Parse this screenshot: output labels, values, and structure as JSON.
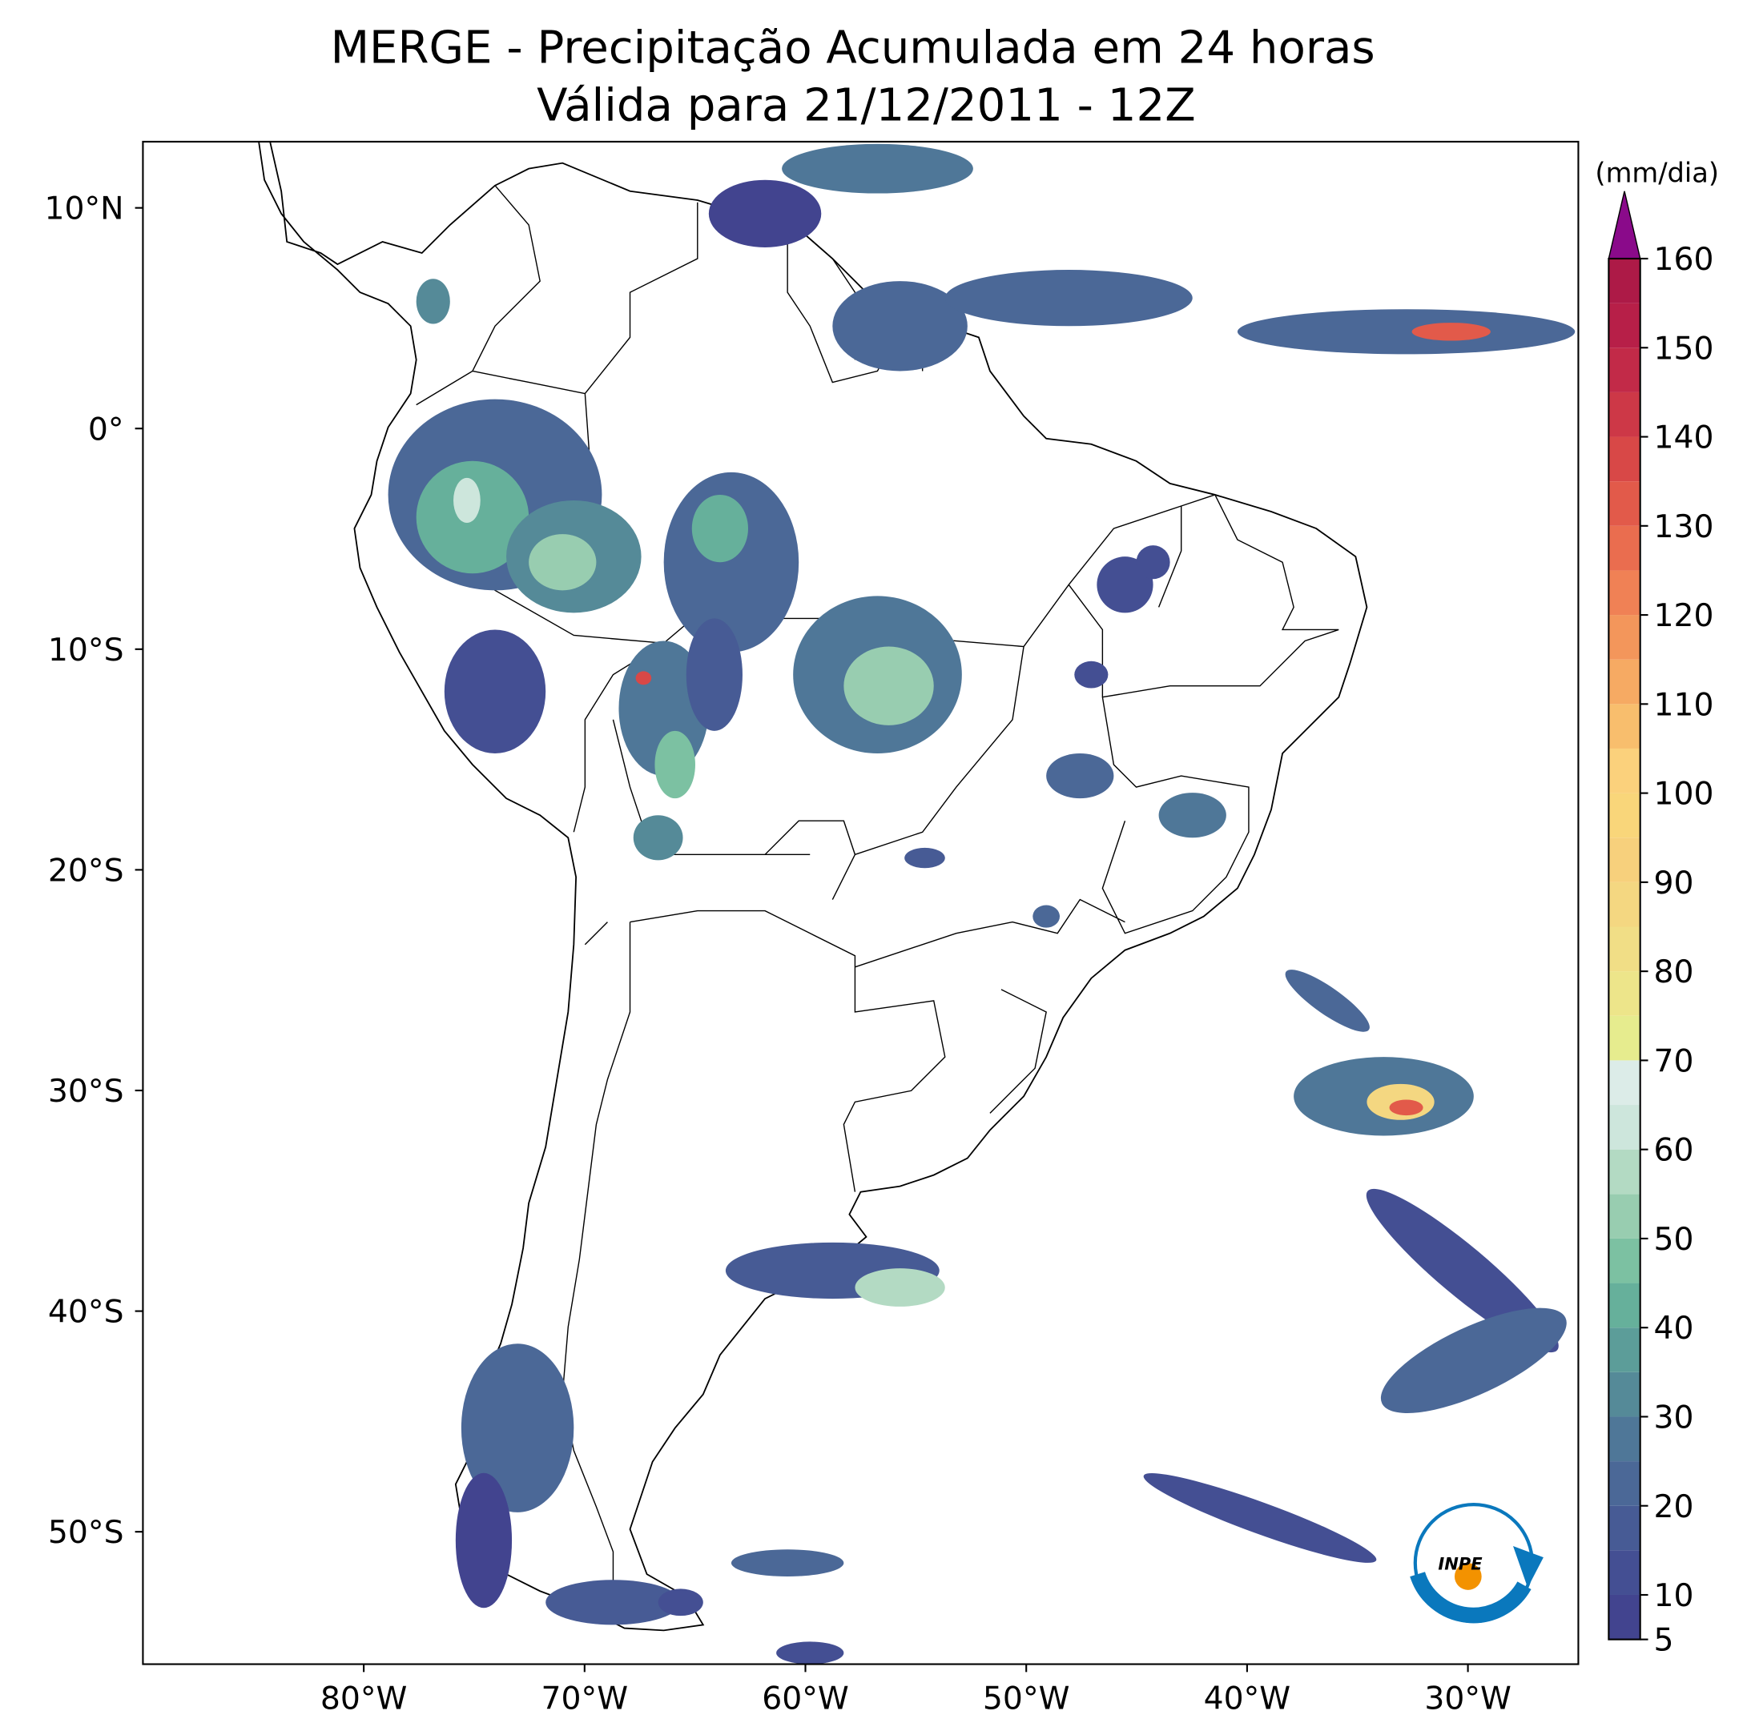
{
  "map": {
    "title": "MERGE - Precipitação Acumulada em 24 horas",
    "subtitle": "Válida para 21/12/2011 - 12Z",
    "lonlim": [
      -90,
      -25
    ],
    "latlim": [
      13,
      -56
    ],
    "lon_ticks": [
      {
        "value": -80,
        "label": "80°W"
      },
      {
        "value": -70,
        "label": "70°W"
      },
      {
        "value": -60,
        "label": "60°W"
      },
      {
        "value": -50,
        "label": "50°W"
      },
      {
        "value": -40,
        "label": "40°W"
      },
      {
        "value": -30,
        "label": "30°W"
      }
    ],
    "lat_ticks": [
      {
        "value": 10,
        "label": "10°N"
      },
      {
        "value": 0,
        "label": "0°"
      },
      {
        "value": -10,
        "label": "10°S"
      },
      {
        "value": -20,
        "label": "20°S"
      },
      {
        "value": -30,
        "label": "30°S"
      },
      {
        "value": -40,
        "label": "40°S"
      },
      {
        "value": -50,
        "label": "50°S"
      }
    ],
    "logo": {
      "text": "INPE"
    }
  },
  "colorbar": {
    "unit": "(mm/dia)",
    "lim": [
      5,
      160
    ],
    "ticks": [
      5,
      10,
      20,
      30,
      40,
      50,
      60,
      70,
      80,
      90,
      100,
      110,
      120,
      130,
      140,
      150,
      160
    ],
    "levels": [
      5,
      10,
      15,
      20,
      25,
      30,
      35,
      40,
      45,
      50,
      55,
      60,
      65,
      70,
      75,
      80,
      85,
      90,
      95,
      100,
      105,
      110,
      115,
      120,
      125,
      130,
      135,
      140,
      145,
      150,
      155,
      160
    ],
    "colors": [
      "#42448f",
      "#444f93",
      "#475b95",
      "#4b6897",
      "#4f7798",
      "#558a98",
      "#5c9d99",
      "#66b09b",
      "#7cc1a2",
      "#98cdb0",
      "#b3dac3",
      "#cde6dc",
      "#dcece8",
      "#e6ec8e",
      "#ede58a",
      "#f1de86",
      "#f4d781",
      "#f7d07c",
      "#f9d67a",
      "#fbd17c",
      "#f8be6d",
      "#f6aa63",
      "#f3965b",
      "#f08155",
      "#ea6d4f",
      "#e25a4a",
      "#d84847",
      "#cd3847",
      "#c22a48",
      "#b71f48",
      "#ad1a47"
    ],
    "extend_color": "#8a0a8a"
  }
}
